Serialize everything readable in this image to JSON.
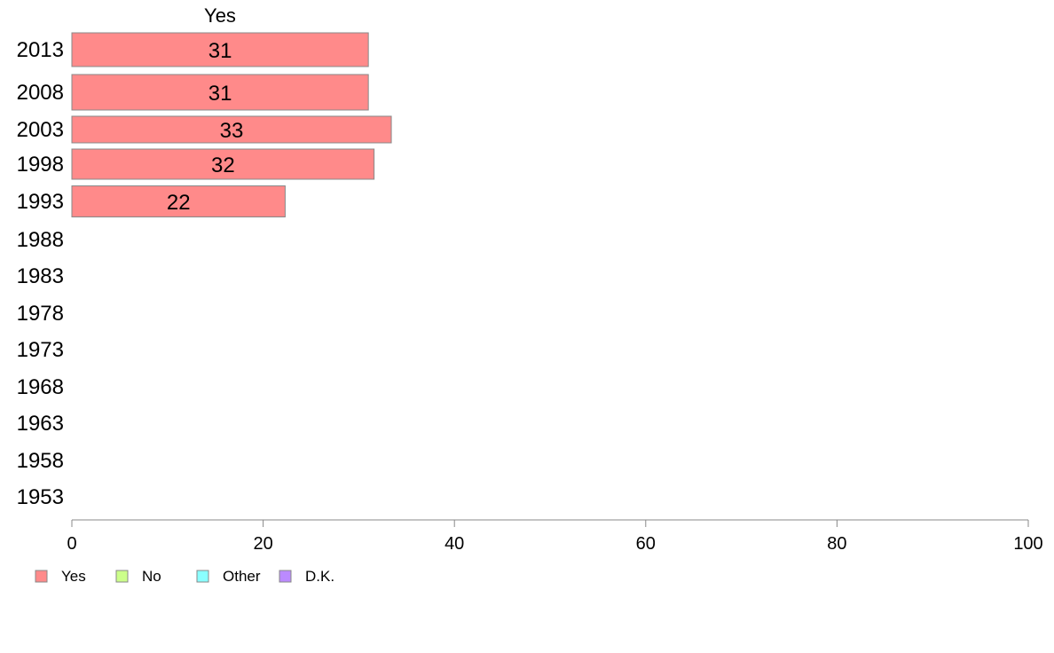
{
  "chart_data": {
    "type": "bar",
    "orientation": "horizontal",
    "stacked": true,
    "series_header": "Yes",
    "categories": [
      "2013",
      "2008",
      "2003",
      "1998",
      "1993",
      "1988",
      "1983",
      "1978",
      "1973",
      "1968",
      "1963",
      "1958",
      "1953"
    ],
    "series": [
      {
        "name": "Yes",
        "color": "#ff8a8a",
        "values": [
          31,
          31,
          33.4,
          31.6,
          22.3,
          null,
          null,
          null,
          null,
          null,
          null,
          null,
          null
        ],
        "labels": [
          "31",
          "31",
          "33",
          "32",
          "22",
          "",
          "",
          "",
          "",
          "",
          "",
          "",
          ""
        ]
      },
      {
        "name": "No",
        "color": "#ccff8a",
        "values": [
          null,
          null,
          null,
          null,
          null,
          null,
          null,
          null,
          null,
          null,
          null,
          null,
          null
        ]
      },
      {
        "name": "Other",
        "color": "#8affff",
        "values": [
          null,
          null,
          null,
          null,
          null,
          null,
          null,
          null,
          null,
          null,
          null,
          null,
          null
        ]
      },
      {
        "name": "D.K.",
        "color": "#bb8aff",
        "values": [
          null,
          null,
          null,
          null,
          null,
          null,
          null,
          null,
          null,
          null,
          null,
          null,
          null
        ]
      }
    ],
    "xlim": [
      0,
      100
    ],
    "xticks": [
      "0",
      "20",
      "40",
      "60",
      "80",
      "100"
    ],
    "grid": false,
    "legend_position": "bottom-left",
    "xlabel": "",
    "ylabel": "",
    "title": ""
  }
}
